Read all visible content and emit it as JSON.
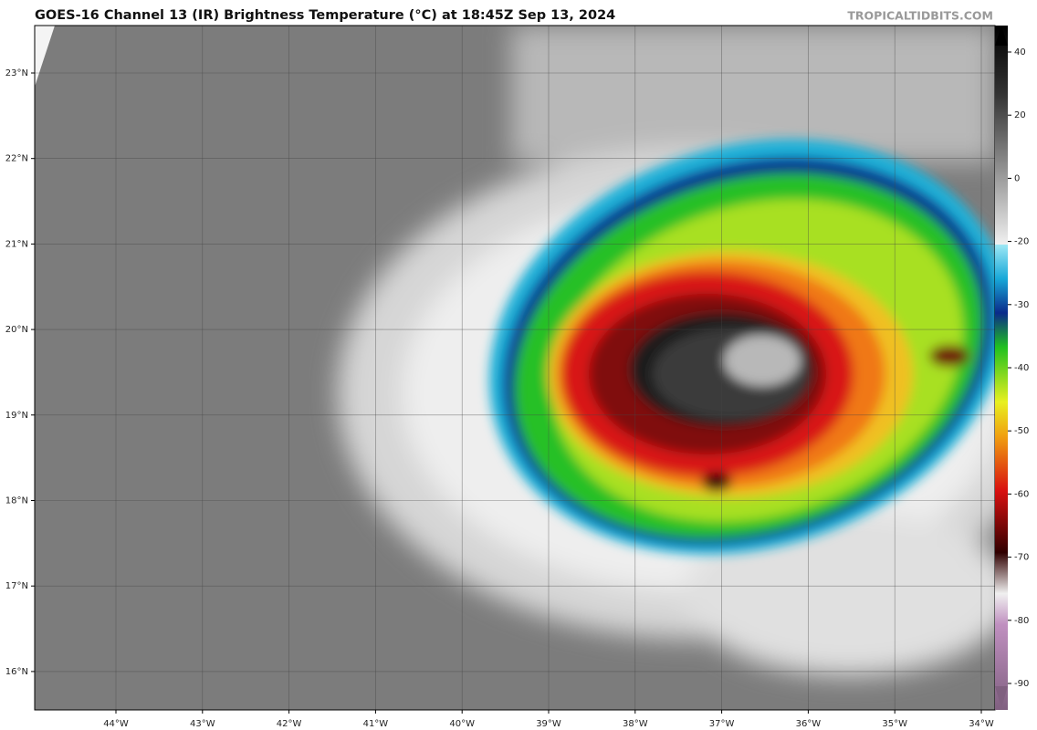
{
  "title": "GOES-16 Channel 13 (IR) Brightness Temperature (°C) at 18:45Z Sep 13, 2024",
  "credit": "TROPICALTIDBITS.COM",
  "map": {
    "lat_labels": [
      "23°N",
      "22°N",
      "21°N",
      "20°N",
      "19°N",
      "18°N",
      "17°N",
      "16°N"
    ],
    "lon_labels": [
      "44°W",
      "43°W",
      "42°W",
      "41°W",
      "40°W",
      "39°W",
      "38°W",
      "37°W",
      "36°W",
      "35°W",
      "34°W"
    ]
  },
  "colorbar": {
    "ticks": [
      40,
      20,
      0,
      -20,
      -30,
      -40,
      -50,
      -60,
      -70,
      -80,
      -90
    ]
  }
}
